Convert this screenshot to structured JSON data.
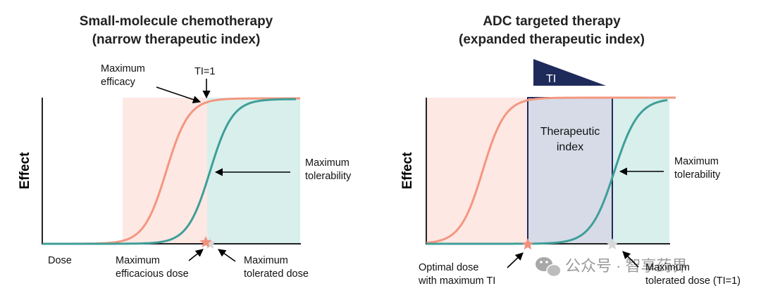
{
  "left_panel": {
    "title_line1": "Small-molecule chemotherapy",
    "title_line2": "(narrow therapeutic index)",
    "y_axis_label": "Effect",
    "x_axis_label": "Dose",
    "max_efficacy_line1": "Maximum",
    "max_efficacy_line2": "efficacy",
    "ti_label": "TI=1",
    "max_tolerability_line1": "Maximum",
    "max_tolerability_line2": "tolerability",
    "max_efficacious_dose_line1": "Maximum",
    "max_efficacious_dose_line2": "efficacious dose",
    "max_tolerated_dose_line1": "Maximum",
    "max_tolerated_dose_line2": "tolerated dose"
  },
  "right_panel": {
    "title_line1": "ADC targeted therapy",
    "title_line2": "(expanded therapeutic index)",
    "y_axis_label": "Effect",
    "ti_wedge_label": "TI",
    "therapeutic_index_line1": "Therapeutic",
    "therapeutic_index_line2": "index",
    "max_tolerability_line1": "Maximum",
    "max_tolerability_line2": "tolerability",
    "optimal_dose_line1": "Optimal dose",
    "optimal_dose_line2": "with maximum TI",
    "max_tolerated_dose_line1": "Maximum",
    "max_tolerated_dose_line2": "tolerated dose (TI=1)"
  },
  "watermark": {
    "text": "公众号 · 智享药界"
  },
  "colors": {
    "efficacy_curve": "#f4967f",
    "toxicity_curve": "#3f9e98",
    "efficacy_region": "#fde8e4",
    "toxicity_region": "#d8efec",
    "therapeutic_region": "#d6dbe7",
    "ti_wedge": "#1e2a5a",
    "star_efficacy": "#f0907e",
    "star_tolerated": "#d8d8d8"
  }
}
